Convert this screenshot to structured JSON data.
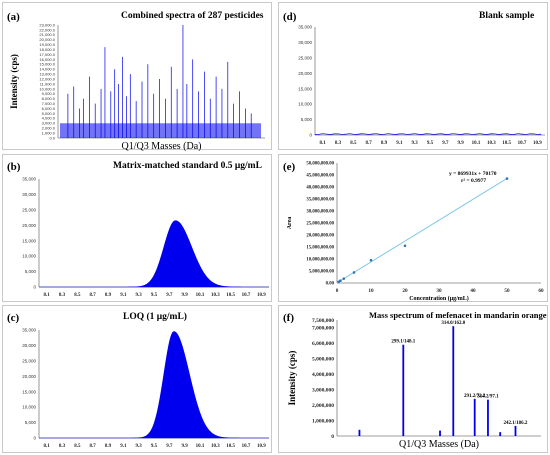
{
  "panels": {
    "a": {
      "label": "(a)",
      "title": "Combined spectra of 287 pesticides",
      "ylabel": "Intensity (cps)",
      "xlabel": "Q1/Q3 Masses (Da)"
    },
    "b": {
      "label": "(b)",
      "title": "Matrix-matched standard 0.5 μg/mL"
    },
    "c": {
      "label": "(c)",
      "title": "LOQ (1 μg/mL)"
    },
    "d": {
      "label": "(d)",
      "title": "Blank sample"
    },
    "e": {
      "label": "(e)",
      "equation": "y = 869931x + 70170",
      "r2": "r² = 0.9977",
      "xlabel": "Concentration (μg/mL)",
      "ylabel": "Area"
    },
    "f": {
      "label": "(f)",
      "title": "Mass spectrum of mefenacet in mandarin orange",
      "ylabel": "Intensity (cps)",
      "xlabel": "Q1/Q3 Masses (Da)"
    }
  },
  "colors": {
    "spectrum": "#0000ee",
    "regression_line": "#7ec8e3",
    "points": "#2e75b6",
    "axis": "#7f7f7f"
  },
  "chart_data": [
    {
      "id": "a",
      "type": "bar",
      "title": "Combined spectra of 287 pesticides",
      "ylabel": "Intensity (cps)",
      "xlabel": "Q1/Q3 Masses (Da)",
      "yticks": [
        "0.0",
        "1,000.0",
        "2,000.0",
        "3,000.0",
        "4,000.0",
        "5,000.0",
        "6,000.0",
        "7,000.0",
        "8,000.0",
        "9,000.0",
        "10,000.0",
        "11,000.0",
        "12,000.0",
        "13,000.0",
        "14,000.0",
        "15,000.0",
        "16,000.0",
        "17,000.0",
        "18,000.0",
        "19,000.0",
        "20,000.0",
        "21,000.0",
        "22,000.0",
        "23,000.0"
      ],
      "ylim": [
        0,
        23000
      ],
      "peaks": [
        {
          "x": 0.02,
          "y": 9000
        },
        {
          "x": 0.05,
          "y": 10500
        },
        {
          "x": 0.08,
          "y": 6000
        },
        {
          "x": 0.1,
          "y": 8000
        },
        {
          "x": 0.13,
          "y": 12500
        },
        {
          "x": 0.16,
          "y": 7000
        },
        {
          "x": 0.19,
          "y": 10000
        },
        {
          "x": 0.21,
          "y": 18500
        },
        {
          "x": 0.24,
          "y": 9500
        },
        {
          "x": 0.26,
          "y": 14000
        },
        {
          "x": 0.28,
          "y": 11000
        },
        {
          "x": 0.3,
          "y": 16500
        },
        {
          "x": 0.32,
          "y": 8500
        },
        {
          "x": 0.34,
          "y": 13000
        },
        {
          "x": 0.37,
          "y": 7500
        },
        {
          "x": 0.4,
          "y": 11500
        },
        {
          "x": 0.43,
          "y": 15000
        },
        {
          "x": 0.46,
          "y": 9000
        },
        {
          "x": 0.49,
          "y": 12000
        },
        {
          "x": 0.52,
          "y": 8000
        },
        {
          "x": 0.55,
          "y": 14500
        },
        {
          "x": 0.58,
          "y": 10000
        },
        {
          "x": 0.61,
          "y": 23000
        },
        {
          "x": 0.63,
          "y": 11000
        },
        {
          "x": 0.66,
          "y": 16000
        },
        {
          "x": 0.69,
          "y": 9500
        },
        {
          "x": 0.72,
          "y": 13500
        },
        {
          "x": 0.75,
          "y": 8000
        },
        {
          "x": 0.78,
          "y": 12500
        },
        {
          "x": 0.81,
          "y": 10000
        },
        {
          "x": 0.84,
          "y": 15500
        },
        {
          "x": 0.87,
          "y": 7000
        },
        {
          "x": 0.9,
          "y": 9500
        },
        {
          "x": 0.93,
          "y": 6000
        },
        {
          "x": 0.96,
          "y": 5000
        }
      ]
    },
    {
      "id": "b",
      "type": "area",
      "title": "Matrix-matched standard 0.5 μg/mL",
      "x_ticks": [
        "8.1",
        "8.3",
        "8.5",
        "8.7",
        "8.9",
        "9.1",
        "9.3",
        "9.5",
        "9.7",
        "9.9",
        "10.1",
        "10.3",
        "10.5",
        "10.7",
        "10.9"
      ],
      "yticks": [
        "0",
        "5,000",
        "10,000",
        "15,000",
        "20,000",
        "25,000",
        "30,000",
        "35,000"
      ],
      "ylim": [
        0,
        35000
      ],
      "xlim": [
        8.0,
        11.0
      ],
      "peak": {
        "center": 9.78,
        "height": 21500,
        "sigma_left": 0.15,
        "sigma_right": 0.21
      }
    },
    {
      "id": "c",
      "type": "area",
      "title": "LOQ (1 μg/mL)",
      "x_ticks": [
        "8.1",
        "8.3",
        "8.5",
        "8.7",
        "8.9",
        "9.1",
        "9.3",
        "9.5",
        "9.7",
        "9.9",
        "10.1",
        "10.3",
        "10.5",
        "10.7",
        "10.9"
      ],
      "yticks": [
        "0",
        "5,000",
        "10,000",
        "15,000",
        "20,000",
        "25,000",
        "30,000",
        "35,000"
      ],
      "ylim": [
        0,
        35000
      ],
      "xlim": [
        8.0,
        11.0
      ],
      "peak": {
        "center": 9.76,
        "height": 34500,
        "sigma_left": 0.13,
        "sigma_right": 0.2
      }
    },
    {
      "id": "d",
      "type": "line",
      "title": "Blank sample",
      "x_ticks": [
        "8.1",
        "8.3",
        "8.5",
        "8.7",
        "8.9",
        "9.1",
        "9.3",
        "9.5",
        "9.7",
        "9.9",
        "10.1",
        "10.3",
        "10.5",
        "10.7",
        "10.9"
      ],
      "yticks": [
        "0",
        "5,000",
        "10,000",
        "15,000",
        "20,000",
        "25,000",
        "30,000",
        "35,000"
      ],
      "ylim": [
        0,
        35000
      ],
      "xlim": [
        8.0,
        11.0
      ],
      "baseline": 300
    },
    {
      "id": "e",
      "type": "scatter",
      "xlabel": "Concentration (μg/mL)",
      "ylabel": "Area",
      "x_ticks": [
        "0",
        "10",
        "20",
        "30",
        "40",
        "50",
        "60"
      ],
      "yticks": [
        "0.00",
        "5,000,000.00",
        "10,000,000.00",
        "15,000,000.00",
        "20,000,000.00",
        "25,000,000.00",
        "30,000,000.00",
        "35,000,000.00",
        "40,000,000.00",
        "45,000,000.00",
        "50,000,000.00"
      ],
      "xlim": [
        0,
        60
      ],
      "ylim": [
        0,
        50000000
      ],
      "points": [
        {
          "x": 0.5,
          "y": 500000
        },
        {
          "x": 1,
          "y": 950000
        },
        {
          "x": 2,
          "y": 1800000
        },
        {
          "x": 5,
          "y": 4400000
        },
        {
          "x": 10,
          "y": 9500000
        },
        {
          "x": 20,
          "y": 15500000
        },
        {
          "x": 50,
          "y": 43500000
        }
      ],
      "fit": {
        "slope": 869931,
        "intercept": 70170
      }
    },
    {
      "id": "f",
      "type": "bar",
      "title": "Mass spectrum of mefenacet in mandarin orange",
      "ylabel": "Intensity (cps)",
      "xlabel": "Q1/Q3 Masses (Da)",
      "yticks": [
        "0",
        "500,000",
        "1,000,000",
        "1,500,000",
        "2,000,000",
        "2,500,000",
        "3,000,000",
        "3,500,000",
        "4,000,000",
        "4,500,000",
        "5,000,000",
        "5,500,000",
        "6,000,000",
        "6,500,000",
        "7,000,000",
        "7,500,000"
      ],
      "ylim": [
        0,
        7500000
      ],
      "peaks": [
        {
          "x": 0.11,
          "y": 400000
        },
        {
          "x": 0.325,
          "y": 5900000,
          "label": "299.1/148.1"
        },
        {
          "x": 0.505,
          "y": 350000
        },
        {
          "x": 0.57,
          "y": 7100000,
          "label": "314.0/162.0"
        },
        {
          "x": 0.675,
          "y": 2400000,
          "label": "291.2/72.2"
        },
        {
          "x": 0.74,
          "y": 2350000,
          "label": "314.2/97.1"
        },
        {
          "x": 0.8,
          "y": 250000
        },
        {
          "x": 0.875,
          "y": 650000,
          "label": "242.1/186.2"
        }
      ]
    }
  ]
}
